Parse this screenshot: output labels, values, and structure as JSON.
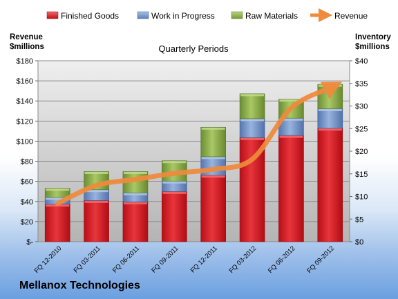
{
  "chart_data": {
    "type": "bar",
    "stacked": true,
    "title": "Quarterly Periods",
    "categories": [
      "FQ 12-2010",
      "FQ 03-2011",
      "FQ 06-2011",
      "FQ 09-2011",
      "FQ 12-2011",
      "FQ 03-2012",
      "FQ 06-2012",
      "FQ 09-2012"
    ],
    "series": [
      {
        "name": "Finished Goods",
        "axis": "right",
        "color": "#e0202a",
        "values": [
          8.3,
          9.1,
          8.8,
          11.1,
          14.7,
          23.0,
          23.5,
          25.1
        ]
      },
      {
        "name": "Work in Progress",
        "axis": "right",
        "color": "#6f93c8",
        "values": [
          1.5,
          2.4,
          2.0,
          2.3,
          4.1,
          4.2,
          3.8,
          4.3
        ]
      },
      {
        "name": "Raw Materials",
        "axis": "right",
        "color": "#8db04a",
        "values": [
          2.0,
          4.0,
          4.7,
          4.5,
          6.5,
          5.5,
          4.2,
          5.4
        ]
      }
    ],
    "line_series": {
      "name": "Revenue",
      "axis": "left",
      "color": "#f08a3c",
      "values": [
        38,
        56,
        62,
        68,
        72,
        82,
        133,
        153
      ]
    },
    "left_axis": {
      "label_line1": "Revenue",
      "label_line2": "$millions",
      "ylim": [
        0,
        180
      ],
      "ticks": [
        "$-",
        "$20",
        "$40",
        "$60",
        "$80",
        "$100",
        "$120",
        "$140",
        "$160",
        "$180"
      ]
    },
    "right_axis": {
      "label_line1": "Inventory",
      "label_line2": "$millions",
      "ylim": [
        0,
        40
      ],
      "ticks": [
        "$0",
        "$5",
        "$10",
        "$15",
        "$20",
        "$25",
        "$30",
        "$35",
        "$40"
      ]
    },
    "grid": true,
    "legend": "top"
  },
  "company": "Mellanox Technologies"
}
